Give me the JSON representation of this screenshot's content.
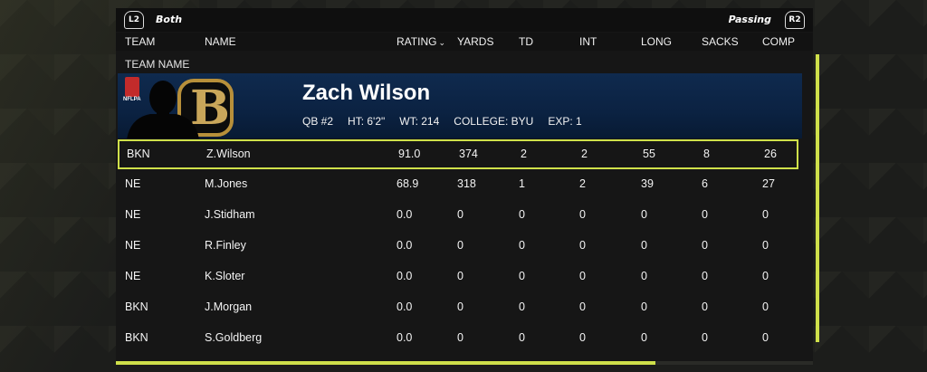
{
  "topbar": {
    "left_button": "L2",
    "left_label": "Both",
    "right_label": "Passing",
    "right_button": "R2"
  },
  "columns": {
    "team": "TEAM",
    "name": "NAME",
    "rating": "RATING",
    "yards": "YARDS",
    "td": "TD",
    "int": "INT",
    "long": "LONG",
    "sacks": "SACKS",
    "comp": "COMP"
  },
  "sort_indicator": "chevron-down-icon",
  "team_name_label": "TEAM NAME",
  "player": {
    "name": "Zach Wilson",
    "position": "QB #2",
    "height": "HT: 6'2\"",
    "weight": "WT: 214",
    "college": "COLLEGE: BYU",
    "experience": "EXP: 1",
    "badge": "NFLPA",
    "logo_letter": "B"
  },
  "rows": [
    {
      "team": "BKN",
      "name": "Z.Wilson",
      "rating": "91.0",
      "yards": "374",
      "td": "2",
      "int": "2",
      "long": "55",
      "sacks": "8",
      "comp": "26"
    },
    {
      "team": "NE",
      "name": "M.Jones",
      "rating": "68.9",
      "yards": "318",
      "td": "1",
      "int": "2",
      "long": "39",
      "sacks": "6",
      "comp": "27"
    },
    {
      "team": "NE",
      "name": "J.Stidham",
      "rating": "0.0",
      "yards": "0",
      "td": "0",
      "int": "0",
      "long": "0",
      "sacks": "0",
      "comp": "0"
    },
    {
      "team": "NE",
      "name": "R.Finley",
      "rating": "0.0",
      "yards": "0",
      "td": "0",
      "int": "0",
      "long": "0",
      "sacks": "0",
      "comp": "0"
    },
    {
      "team": "NE",
      "name": "K.Sloter",
      "rating": "0.0",
      "yards": "0",
      "td": "0",
      "int": "0",
      "long": "0",
      "sacks": "0",
      "comp": "0"
    },
    {
      "team": "BKN",
      "name": "J.Morgan",
      "rating": "0.0",
      "yards": "0",
      "td": "0",
      "int": "0",
      "long": "0",
      "sacks": "0",
      "comp": "0"
    },
    {
      "team": "BKN",
      "name": "S.Goldberg",
      "rating": "0.0",
      "yards": "0",
      "td": "0",
      "int": "0",
      "long": "0",
      "sacks": "0",
      "comp": "0"
    }
  ],
  "colors": {
    "accent": "#cfe04a",
    "banner": "#0f2a4e",
    "logo_gold": "#c9a65a"
  }
}
